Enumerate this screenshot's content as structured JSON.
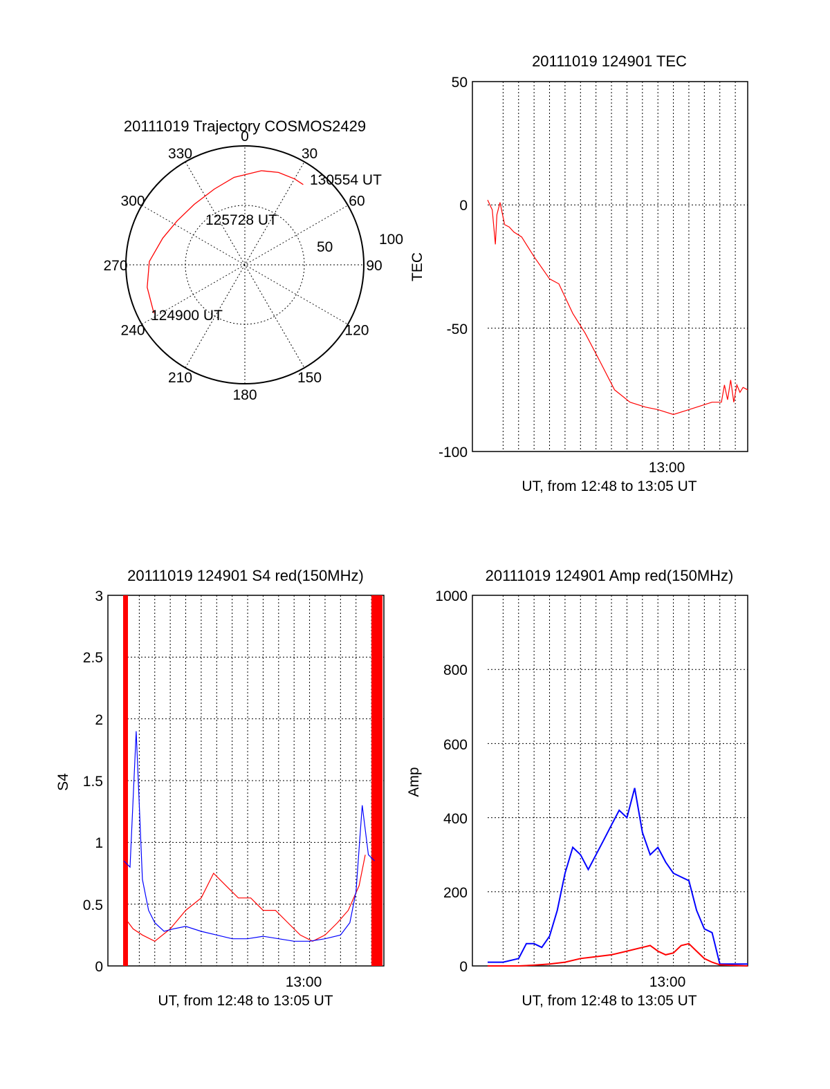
{
  "chart_data": [
    {
      "type": "polar-trajectory",
      "title": "20111019 Trajectory COSMOS2429",
      "azimuth_labels": [
        "0",
        "30",
        "60",
        "90",
        "120",
        "150",
        "180",
        "210",
        "240",
        "270",
        "300",
        "330"
      ],
      "elevation_labels": [
        "50",
        "100"
      ],
      "color": "#ff0000",
      "trajectory": [
        {
          "azimuth": 242,
          "elevation_radius": 111
        },
        {
          "azimuth": 257,
          "elevation_radius": 108
        },
        {
          "azimuth": 272,
          "elevation_radius": 103
        },
        {
          "azimuth": 288,
          "elevation_radius": 93
        },
        {
          "azimuth": 303,
          "elevation_radius": 87
        },
        {
          "azimuth": 320,
          "elevation_radius": 85
        },
        {
          "azimuth": 338,
          "elevation_radius": 88
        },
        {
          "azimuth": 353,
          "elevation_radius": 95
        },
        {
          "azimuth": 10,
          "elevation_radius": 103
        },
        {
          "azimuth": 20,
          "elevation_radius": 106
        },
        {
          "azimuth": 30,
          "elevation_radius": 107
        },
        {
          "azimuth": 36,
          "elevation_radius": 107
        }
      ],
      "annotations": [
        "124900 UT",
        "125728 UT",
        "130554 UT"
      ]
    },
    {
      "type": "line",
      "title": "20111019 124901 TEC",
      "xlabel": "UT, from 12:48 to 13:05 UT",
      "ylabel": "TEC",
      "x_tick_label": "13:00",
      "ylim": [
        -100,
        50
      ],
      "y_ticks": [
        "50",
        "0",
        "-50",
        "-100"
      ],
      "grid": true,
      "series": [
        {
          "color": "#ff0000",
          "x_minutes": [
            0.0,
            0.3,
            0.5,
            0.6,
            0.8,
            1.1,
            1.4,
            1.7,
            2.2,
            3.0,
            4.0,
            4.6,
            5.5,
            6.3,
            7.3,
            8.2,
            9.2,
            10.2,
            11.0,
            12.0,
            13.0,
            14.5,
            15.1,
            15.3,
            15.5,
            15.7,
            15.9,
            16.1,
            16.3,
            16.5,
            16.8
          ],
          "values": [
            2,
            -2,
            -16,
            -4,
            1,
            -8,
            -9,
            -11,
            -13,
            -21,
            -30,
            -32,
            -44,
            -52,
            -64,
            -75,
            -80,
            -82,
            -83,
            -85,
            -83,
            -80,
            -80,
            -73,
            -79,
            -71,
            -80,
            -73,
            -76,
            -74,
            -75
          ]
        }
      ]
    },
    {
      "type": "line",
      "title": "20111019 124901 S4 red(150MHz)",
      "xlabel": "UT, from 12:48 to 13:05 UT",
      "ylabel": "S4",
      "x_tick_label": "13:00",
      "ylim": [
        0,
        3
      ],
      "y_ticks": [
        "3",
        "2.5",
        "2",
        "1.5",
        "1",
        "0.5",
        "0"
      ],
      "grid": true,
      "series": [
        {
          "color": "#ff0000",
          "x_minutes": [
            0.0,
            0.6,
            1.2,
            2.0,
            3.0,
            4.0,
            5.0,
            5.8,
            6.6,
            7.4,
            8.2,
            9.0,
            9.8,
            10.6,
            11.4,
            12.2,
            13.0,
            13.8,
            14.5,
            15.2,
            15.6
          ],
          "values": [
            0.4,
            0.3,
            0.25,
            0.2,
            0.3,
            0.45,
            0.55,
            0.75,
            0.65,
            0.55,
            0.55,
            0.45,
            0.45,
            0.35,
            0.25,
            0.2,
            0.25,
            0.35,
            0.45,
            0.65,
            0.9
          ]
        },
        {
          "color": "#0000ff",
          "x_minutes": [
            0.0,
            0.4,
            0.8,
            1.2,
            1.6,
            2.0,
            2.6,
            3.2,
            4.0,
            5.0,
            6.0,
            7.0,
            8.0,
            9.0,
            10.0,
            11.0,
            12.0,
            13.0,
            14.0,
            14.6,
            15.0,
            15.4,
            15.8,
            16.2
          ],
          "values": [
            0.85,
            0.8,
            1.9,
            0.7,
            0.45,
            0.35,
            0.28,
            0.3,
            0.32,
            0.28,
            0.25,
            0.22,
            0.22,
            0.24,
            0.22,
            0.2,
            0.2,
            0.22,
            0.25,
            0.35,
            0.6,
            1.3,
            0.9,
            0.85
          ]
        }
      ]
    },
    {
      "type": "line",
      "title": "20111019 124901 Amp red(150MHz)",
      "xlabel": "UT, from 12:48 to 13:05 UT",
      "ylabel": "Amp",
      "x_tick_label": "13:00",
      "ylim": [
        0,
        1000
      ],
      "y_ticks": [
        "1000",
        "800",
        "600",
        "400",
        "200",
        "0"
      ],
      "grid": true,
      "series": [
        {
          "color": "#0000ff",
          "x_minutes": [
            0.0,
            1.0,
            2.0,
            2.5,
            3.0,
            3.5,
            4.0,
            4.5,
            5.0,
            5.5,
            6.0,
            6.5,
            7.0,
            7.5,
            8.0,
            8.5,
            9.0,
            9.5,
            10.0,
            10.5,
            11.0,
            11.5,
            12.0,
            12.5,
            13.0,
            13.5,
            14.0,
            14.5,
            15.0,
            16.8
          ],
          "values": [
            10,
            10,
            20,
            60,
            60,
            50,
            80,
            150,
            250,
            320,
            300,
            260,
            300,
            340,
            380,
            420,
            400,
            480,
            360,
            300,
            320,
            280,
            250,
            240,
            230,
            150,
            100,
            90,
            5,
            5
          ]
        },
        {
          "color": "#ff0000",
          "x_minutes": [
            0.0,
            2.0,
            3.0,
            4.0,
            5.0,
            6.0,
            7.0,
            8.0,
            9.0,
            10.0,
            10.5,
            11.0,
            11.5,
            12.0,
            12.5,
            13.0,
            13.5,
            14.0,
            14.5,
            15.0,
            16.8
          ],
          "values": [
            0,
            0,
            2,
            5,
            10,
            20,
            25,
            30,
            40,
            50,
            55,
            40,
            30,
            35,
            55,
            60,
            40,
            20,
            10,
            3,
            0
          ]
        }
      ]
    }
  ]
}
